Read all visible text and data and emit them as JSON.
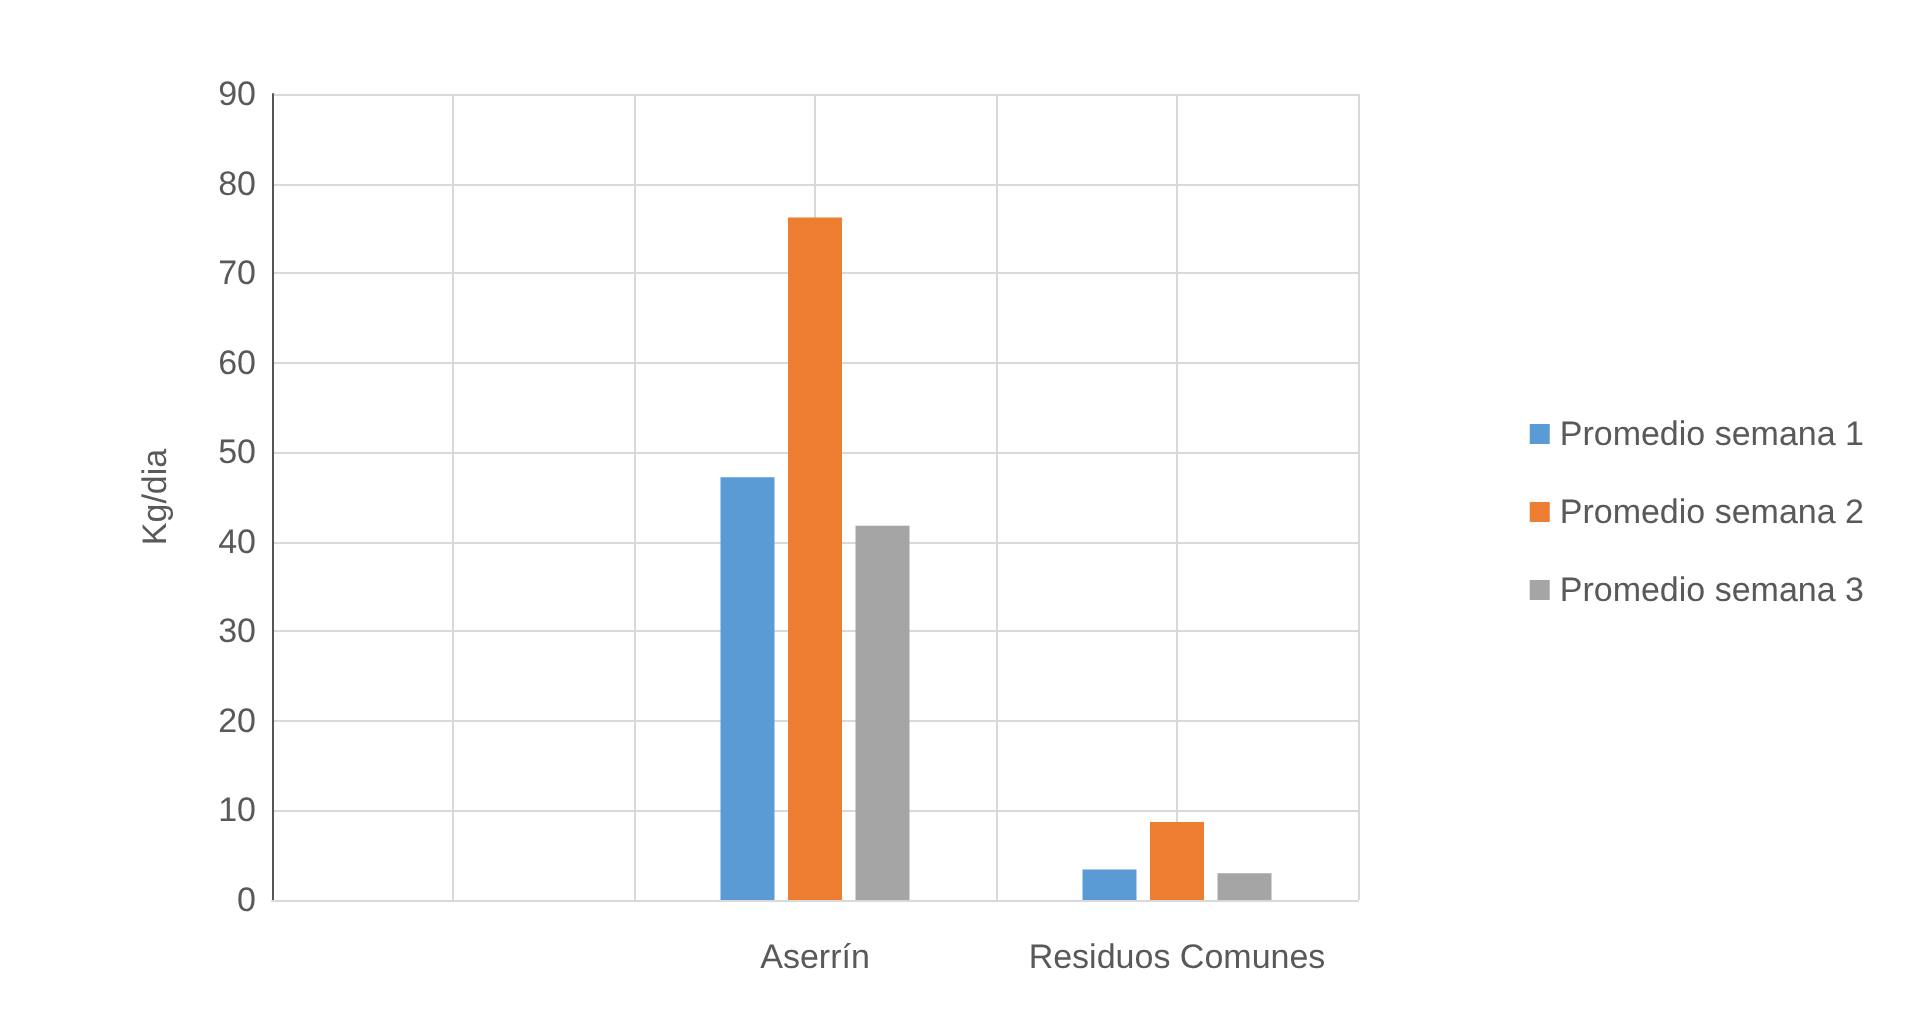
{
  "chart_data": {
    "type": "bar",
    "ylabel": "Kg/dia",
    "categories": [
      null,
      "Aserrín",
      "Residuos Comunes"
    ],
    "series": [
      {
        "name": "Promedio semana 1",
        "color": "#5b9bd5",
        "values": [
          null,
          47.2,
          3.4
        ]
      },
      {
        "name": "Promedio semana 2",
        "color": "#ed7d31",
        "values": [
          null,
          76.2,
          8.7
        ]
      },
      {
        "name": "Promedio semana 3",
        "color": "#a5a5a5",
        "values": [
          null,
          41.8,
          3.0
        ]
      }
    ],
    "ylim": [
      0,
      90
    ],
    "yticks": [
      0,
      10,
      20,
      30,
      40,
      50,
      60,
      70,
      80,
      90
    ],
    "grid": true,
    "legend": "right"
  }
}
